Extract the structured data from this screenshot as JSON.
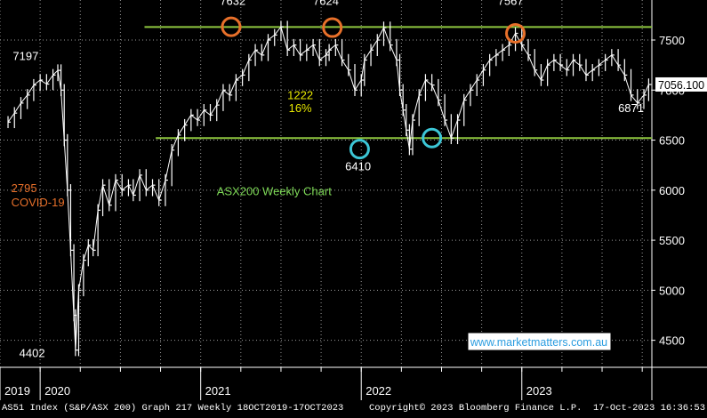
{
  "chart_data": {
    "type": "line",
    "title": "ASX200 Weekly Chart",
    "footer": {
      "security": "AS51 Index (S&P/ASX 200) Graph 217  Weekly 18OCT2019-17OCT2023",
      "copyright": "Copyright© 2023 Bloomberg Finance L.P.",
      "timestamp": "17-Oct-2023 16:36:53"
    },
    "x_tick_labels": [
      "2019",
      "2020",
      "2021",
      "2022",
      "2023"
    ],
    "x_tick_values": [
      2019.75,
      2020.0,
      2021.0,
      2022.0,
      2023.0
    ],
    "xlim": [
      2019.75,
      2023.81
    ],
    "y_tick_labels": [
      "4500",
      "5000",
      "5500",
      "6000",
      "6500",
      "7000",
      "7500"
    ],
    "y_tick_values": [
      4500,
      5000,
      5500,
      6000,
      6500,
      7000,
      7500
    ],
    "ylim": [
      4230,
      7900
    ],
    "last_value_label": "7056.100",
    "last_value": 7056.1,
    "grid": true,
    "colors": {
      "background": "#000000",
      "price": "#ffffff",
      "grid": "#9a9a9a",
      "support_resistance": "#8ec63f",
      "top_circle": "#e8702a",
      "bottom_circle": "#3cc6d6",
      "annotation_yellow": "#e6e600",
      "annotation_orange": "#e8702a",
      "annotation_green": "#7ed957",
      "link": "#2b9de0"
    },
    "horizontal_lines": [
      {
        "value": 7630,
        "x_start": 2020.65,
        "x_end": 2023.81
      },
      {
        "value": 6520,
        "x_start": 2020.72,
        "x_end": 2023.81
      }
    ],
    "highlights": [
      {
        "x": 2021.19,
        "y": 7632,
        "kind": "top"
      },
      {
        "x": 2021.82,
        "y": 7624,
        "kind": "top"
      },
      {
        "x": 2022.96,
        "y": 7567,
        "kind": "top"
      },
      {
        "x": 2021.99,
        "y": 6410,
        "kind": "bottom"
      },
      {
        "x": 2022.44,
        "y": 6520,
        "kind": "bottom"
      }
    ],
    "annotations": [
      {
        "text": "7632",
        "x": 2021.2,
        "y": 7850,
        "color": "white",
        "anchor": "middle"
      },
      {
        "text": "7624",
        "x": 2021.78,
        "y": 7850,
        "color": "white",
        "anchor": "middle"
      },
      {
        "text": "7567",
        "x": 2022.93,
        "y": 7850,
        "color": "white",
        "anchor": "middle"
      },
      {
        "text": "7197",
        "x": 2019.91,
        "y": 7300,
        "color": "white",
        "anchor": "middle"
      },
      {
        "text": "6410",
        "x": 2021.98,
        "y": 6200,
        "color": "white",
        "anchor": "middle"
      },
      {
        "text": "6871",
        "x": 2023.68,
        "y": 6780,
        "color": "white",
        "anchor": "middle"
      },
      {
        "text": "4402",
        "x": 2019.95,
        "y": 4330,
        "color": "white",
        "anchor": "middle"
      },
      {
        "text": "1222",
        "x": 2021.62,
        "y": 6910,
        "color": "yellow",
        "anchor": "middle"
      },
      {
        "text": "16%",
        "x": 2021.62,
        "y": 6780,
        "color": "yellow",
        "anchor": "middle"
      },
      {
        "text": "2795",
        "x": 2019.82,
        "y": 5980,
        "color": "orange",
        "anchor": "start"
      },
      {
        "text": "COVID-19",
        "x": 2019.82,
        "y": 5840,
        "color": "orange",
        "anchor": "start"
      },
      {
        "text": "ASX200 Weekly Chart",
        "x": 2021.1,
        "y": 5950,
        "color": "green",
        "anchor": "start"
      }
    ],
    "watermark": "www.marketmatters.com.au",
    "series": [
      {
        "points": [
          [
            2019.8,
            6680
          ],
          [
            2019.84,
            6770
          ],
          [
            2019.88,
            6870
          ],
          [
            2019.92,
            6950
          ],
          [
            2019.96,
            7050
          ],
          [
            2020.0,
            7100
          ],
          [
            2020.04,
            7060
          ],
          [
            2020.08,
            7150
          ],
          [
            2020.11,
            7197
          ],
          [
            2020.13,
            7000
          ],
          [
            2020.15,
            6500
          ],
          [
            2020.17,
            6000
          ],
          [
            2020.19,
            5400
          ],
          [
            2020.21,
            4750
          ],
          [
            2020.22,
            4402
          ],
          [
            2020.24,
            5000
          ],
          [
            2020.27,
            5300
          ],
          [
            2020.3,
            5450
          ],
          [
            2020.33,
            5400
          ],
          [
            2020.36,
            5800
          ],
          [
            2020.39,
            6050
          ],
          [
            2020.43,
            5850
          ],
          [
            2020.47,
            6100
          ],
          [
            2020.51,
            6000
          ],
          [
            2020.55,
            6050
          ],
          [
            2020.58,
            5950
          ],
          [
            2020.62,
            6150
          ],
          [
            2020.66,
            6000
          ],
          [
            2020.7,
            6050
          ],
          [
            2020.74,
            5900
          ],
          [
            2020.78,
            6100
          ],
          [
            2020.82,
            6400
          ],
          [
            2020.86,
            6550
          ],
          [
            2020.9,
            6650
          ],
          [
            2020.94,
            6750
          ],
          [
            2020.98,
            6700
          ],
          [
            2021.02,
            6800
          ],
          [
            2021.06,
            6750
          ],
          [
            2021.1,
            6850
          ],
          [
            2021.14,
            7000
          ],
          [
            2021.18,
            6950
          ],
          [
            2021.22,
            7100
          ],
          [
            2021.26,
            7150
          ],
          [
            2021.3,
            7300
          ],
          [
            2021.34,
            7400
          ],
          [
            2021.38,
            7350
          ],
          [
            2021.42,
            7500
          ],
          [
            2021.46,
            7550
          ],
          [
            2021.5,
            7632
          ],
          [
            2021.54,
            7400
          ],
          [
            2021.58,
            7450
          ],
          [
            2021.62,
            7350
          ],
          [
            2021.66,
            7400
          ],
          [
            2021.7,
            7450
          ],
          [
            2021.74,
            7300
          ],
          [
            2021.78,
            7350
          ],
          [
            2021.8,
            7400
          ],
          [
            2021.84,
            7450
          ],
          [
            2021.88,
            7300
          ],
          [
            2021.92,
            7200
          ],
          [
            2021.96,
            7000
          ],
          [
            2022.0,
            7100
          ],
          [
            2022.02,
            7300
          ],
          [
            2022.06,
            7400
          ],
          [
            2022.1,
            7500
          ],
          [
            2022.14,
            7624
          ],
          [
            2022.18,
            7450
          ],
          [
            2022.22,
            7300
          ],
          [
            2022.24,
            7000
          ],
          [
            2022.26,
            6800
          ],
          [
            2022.28,
            6600
          ],
          [
            2022.3,
            6410
          ],
          [
            2022.32,
            6700
          ],
          [
            2022.36,
            6950
          ],
          [
            2022.4,
            7100
          ],
          [
            2022.44,
            7050
          ],
          [
            2022.48,
            6900
          ],
          [
            2022.52,
            6700
          ],
          [
            2022.56,
            6520
          ],
          [
            2022.6,
            6700
          ],
          [
            2022.64,
            6900
          ],
          [
            2022.68,
            7000
          ],
          [
            2022.72,
            7100
          ],
          [
            2022.76,
            7200
          ],
          [
            2022.8,
            7300
          ],
          [
            2022.84,
            7350
          ],
          [
            2022.88,
            7400
          ],
          [
            2022.92,
            7450
          ],
          [
            2022.96,
            7567
          ],
          [
            2023.0,
            7450
          ],
          [
            2023.04,
            7350
          ],
          [
            2023.08,
            7200
          ],
          [
            2023.12,
            7100
          ],
          [
            2023.16,
            7250
          ],
          [
            2023.2,
            7300
          ],
          [
            2023.24,
            7250
          ],
          [
            2023.28,
            7200
          ],
          [
            2023.32,
            7300
          ],
          [
            2023.36,
            7250
          ],
          [
            2023.4,
            7150
          ],
          [
            2023.44,
            7200
          ],
          [
            2023.48,
            7250
          ],
          [
            2023.52,
            7300
          ],
          [
            2023.56,
            7350
          ],
          [
            2023.6,
            7250
          ],
          [
            2023.64,
            7150
          ],
          [
            2023.68,
            6950
          ],
          [
            2023.72,
            6871
          ],
          [
            2023.76,
            6950
          ],
          [
            2023.79,
            7056
          ]
        ]
      }
    ]
  }
}
